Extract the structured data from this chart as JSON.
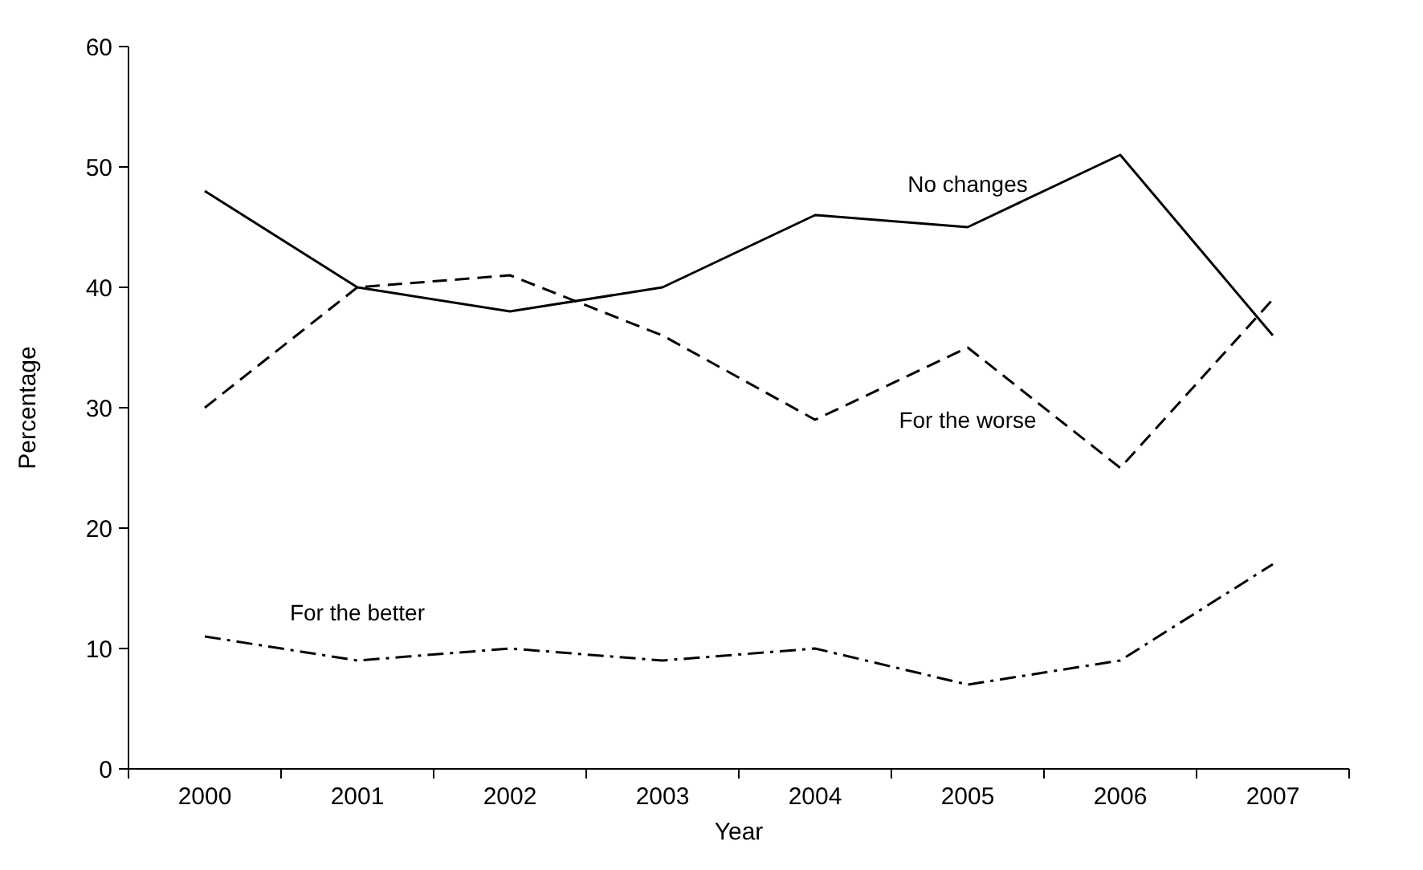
{
  "chart_data": {
    "type": "line",
    "xlabel": "Year",
    "ylabel": "Percentage",
    "categories": [
      "2000",
      "2001",
      "2002",
      "2003",
      "2004",
      "2005",
      "2006",
      "2007"
    ],
    "ylim": [
      0,
      60
    ],
    "yticks": [
      0,
      10,
      20,
      30,
      40,
      50,
      60
    ],
    "grid": false,
    "marker": "none",
    "series": [
      {
        "name": "No changes",
        "color": "#000000",
        "line_style": "solid",
        "values": [
          48,
          40,
          38,
          40,
          46,
          45,
          51,
          36
        ]
      },
      {
        "name": "For the worse",
        "color": "#000000",
        "line_style": "dashed",
        "values": [
          30,
          40,
          41,
          36,
          29,
          35,
          25,
          39
        ]
      },
      {
        "name": "For the better",
        "color": "#000000",
        "line_style": "dashdot",
        "values": [
          11,
          9,
          10,
          9,
          10,
          7,
          9,
          17
        ]
      }
    ]
  }
}
